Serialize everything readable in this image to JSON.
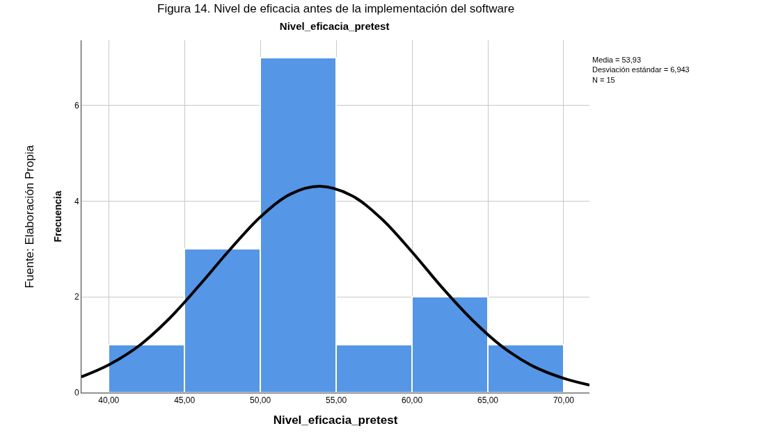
{
  "chart_data": {
    "type": "histogram",
    "title": "Nivel_eficacia_pretest",
    "xlabel": "Nivel_eficacia_pretest",
    "ylabel": "Frecuencia",
    "series": [
      {
        "color": "#5596e6",
        "bins": [
          40,
          45,
          50,
          55,
          60,
          65,
          70
        ],
        "values": [
          1,
          3,
          7,
          1,
          2,
          1
        ]
      },
      {
        "type": "line",
        "color": "#000000",
        "x": [
          38.2,
          40,
          42,
          44,
          46,
          48,
          50,
          52,
          53.93,
          56,
          58,
          60,
          62,
          64,
          66,
          68,
          70,
          71.7
        ],
        "values": [
          0.33,
          0.58,
          0.98,
          1.55,
          2.25,
          2.99,
          3.67,
          4.15,
          4.31,
          4.12,
          3.63,
          2.94,
          2.19,
          1.51,
          0.95,
          0.55,
          0.3,
          0.16
        ]
      }
    ],
    "xlim": [
      38.2,
      71.7
    ],
    "ylim": [
      0,
      7.36
    ],
    "xticks": [
      {
        "value": 40,
        "label": "40,00"
      },
      {
        "value": 45,
        "label": "45,00"
      },
      {
        "value": 50,
        "label": "50,00"
      },
      {
        "value": 55,
        "label": "55,00"
      },
      {
        "value": 60,
        "label": "60,00"
      },
      {
        "value": 65,
        "label": "65,00"
      },
      {
        "value": 70,
        "label": "70,00"
      }
    ],
    "yticks": [
      0,
      2,
      4,
      6
    ],
    "grid": true,
    "annotations": [
      "Figura 14. Nivel de eficacia antes de la implementación del software",
      "Media = 53,93\nDesviación estándar = 6,943\nN = 15",
      "Fuente: Elaboración Propia"
    ]
  }
}
